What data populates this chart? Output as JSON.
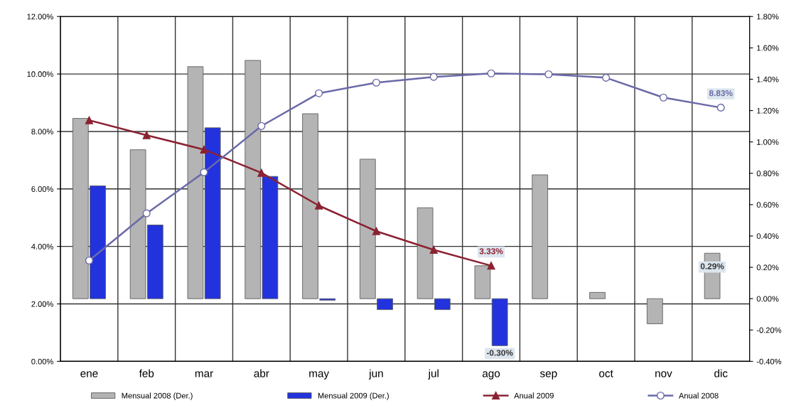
{
  "chart_data": {
    "type": "bar",
    "categories": [
      "ene",
      "feb",
      "mar",
      "abr",
      "may",
      "jun",
      "jul",
      "ago",
      "sep",
      "oct",
      "nov",
      "dic"
    ],
    "series": [
      {
        "name": "Mensual 2008 (Der.)",
        "axis": "y2",
        "color": "#b4b4b4",
        "values": [
          1.15,
          0.95,
          1.48,
          1.52,
          1.18,
          0.89,
          0.58,
          0.21,
          0.79,
          0.04,
          -0.16,
          0.29
        ],
        "value_labels": [
          null,
          null,
          null,
          null,
          null,
          null,
          null,
          null,
          null,
          null,
          null,
          "0.29%"
        ]
      },
      {
        "name": "Mensual 2009 (Der.)",
        "axis": "y2",
        "color": "#2233dd",
        "values": [
          0.72,
          0.47,
          1.09,
          0.78,
          -0.01,
          -0.07,
          -0.07,
          -0.3,
          null,
          null,
          null,
          null
        ],
        "value_labels": [
          null,
          null,
          null,
          null,
          null,
          null,
          null,
          "-0.30%",
          null,
          null,
          null,
          null
        ]
      },
      {
        "name": "Anual 2009",
        "type": "line",
        "marker": "triangle",
        "color": "#8b2232",
        "values": [
          8.39,
          7.87,
          7.37,
          6.56,
          5.42,
          4.53,
          3.88,
          3.33,
          null,
          null,
          null,
          null
        ],
        "value_labels": [
          null,
          null,
          null,
          null,
          null,
          null,
          null,
          "3.33%",
          null,
          null,
          null,
          null
        ]
      },
      {
        "name": "Anual 2008",
        "type": "line",
        "marker": "circle",
        "color": "#6a6aa8",
        "values": [
          3.51,
          5.15,
          6.58,
          8.19,
          9.33,
          9.7,
          9.9,
          10.02,
          9.99,
          9.87,
          9.18,
          8.83
        ],
        "value_labels": [
          null,
          null,
          null,
          null,
          null,
          null,
          null,
          null,
          null,
          null,
          null,
          "8.83%"
        ]
      }
    ],
    "ylim": [
      0,
      12
    ],
    "yticks": [
      {
        "value": 0,
        "label": "0.00%"
      },
      {
        "value": 2,
        "label": "2.00%"
      },
      {
        "value": 4,
        "label": "4.00%"
      },
      {
        "value": 6,
        "label": "6.00%"
      },
      {
        "value": 8,
        "label": "8.00%"
      },
      {
        "value": 10,
        "label": "10.00%"
      },
      {
        "value": 12,
        "label": "12.00%"
      }
    ],
    "y2lim": [
      -0.4,
      1.8
    ],
    "y2ticks": [
      {
        "value": -0.4,
        "label": "-0.40%"
      },
      {
        "value": -0.2,
        "label": "-0.20%"
      },
      {
        "value": 0,
        "label": "0.00%"
      },
      {
        "value": 0.2,
        "label": "0.20%"
      },
      {
        "value": 0.4,
        "label": "0.40%"
      },
      {
        "value": 0.6,
        "label": "0.60%"
      },
      {
        "value": 0.8,
        "label": "0.80%"
      },
      {
        "value": 1.0,
        "label": "1.00%"
      },
      {
        "value": 1.2,
        "label": "1.20%"
      },
      {
        "value": 1.4,
        "label": "1.40%"
      },
      {
        "value": 1.6,
        "label": "1.60%"
      },
      {
        "value": 1.8,
        "label": "1.80%"
      }
    ],
    "grid": true,
    "legend": "bottom"
  }
}
